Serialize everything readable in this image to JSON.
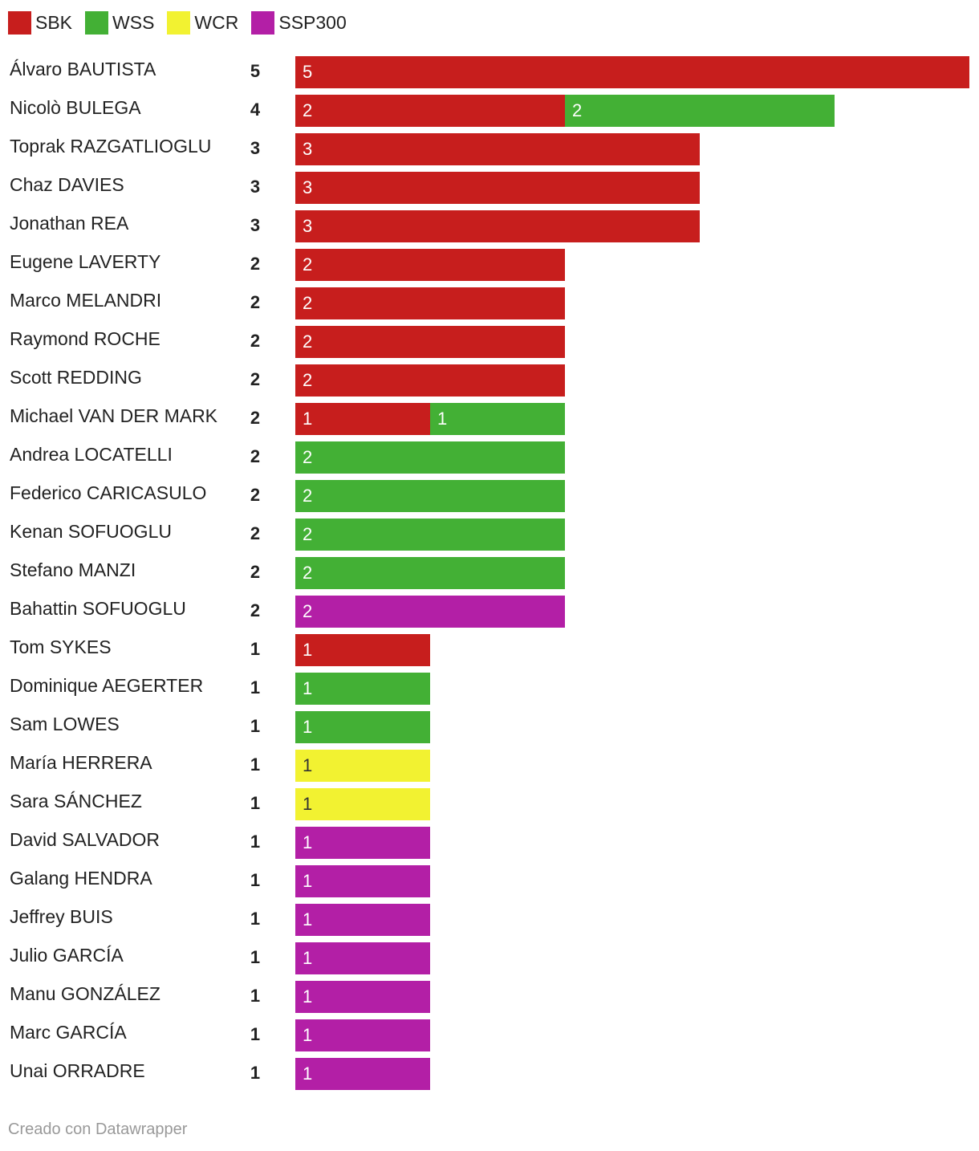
{
  "chart_data": {
    "type": "bar",
    "orientation": "horizontal",
    "stacked": true,
    "title": "",
    "xlabel": "",
    "ylabel": "",
    "xlim": [
      0,
      5
    ],
    "grid": false,
    "legend_placement": "top-left",
    "series": [
      {
        "name": "SBK",
        "color": "#c71e1d"
      },
      {
        "name": "WSS",
        "color": "#43b035"
      },
      {
        "name": "WCR",
        "color": "#f2f231"
      },
      {
        "name": "SSP300",
        "color": "#b31fa6"
      }
    ],
    "rows": [
      {
        "name": "Álvaro BAUTISTA",
        "total": "5",
        "values": [
          5,
          0,
          0,
          0
        ]
      },
      {
        "name": "Nicolò BULEGA",
        "total": "4",
        "values": [
          2,
          2,
          0,
          0
        ]
      },
      {
        "name": "Toprak RAZGATLIOGLU",
        "total": "3",
        "values": [
          3,
          0,
          0,
          0
        ]
      },
      {
        "name": "Chaz DAVIES",
        "total": "3",
        "values": [
          3,
          0,
          0,
          0
        ]
      },
      {
        "name": "Jonathan REA",
        "total": "3",
        "values": [
          3,
          0,
          0,
          0
        ]
      },
      {
        "name": "Eugene LAVERTY",
        "total": "2",
        "values": [
          2,
          0,
          0,
          0
        ]
      },
      {
        "name": "Marco MELANDRI",
        "total": "2",
        "values": [
          2,
          0,
          0,
          0
        ]
      },
      {
        "name": "Raymond ROCHE",
        "total": "2",
        "values": [
          2,
          0,
          0,
          0
        ]
      },
      {
        "name": "Scott REDDING",
        "total": "2",
        "values": [
          2,
          0,
          0,
          0
        ]
      },
      {
        "name": "Michael VAN DER MARK",
        "total": "2",
        "values": [
          1,
          1,
          0,
          0
        ]
      },
      {
        "name": "Andrea LOCATELLI",
        "total": "2",
        "values": [
          0,
          2,
          0,
          0
        ]
      },
      {
        "name": "Federico CARICASULO",
        "total": "2",
        "values": [
          0,
          2,
          0,
          0
        ]
      },
      {
        "name": "Kenan SOFUOGLU",
        "total": "2",
        "values": [
          0,
          2,
          0,
          0
        ]
      },
      {
        "name": "Stefano MANZI",
        "total": "2",
        "values": [
          0,
          2,
          0,
          0
        ]
      },
      {
        "name": "Bahattin SOFUOGLU",
        "total": "2",
        "values": [
          0,
          0,
          0,
          2
        ]
      },
      {
        "name": "Tom SYKES",
        "total": "1",
        "values": [
          1,
          0,
          0,
          0
        ]
      },
      {
        "name": "Dominique AEGERTER",
        "total": "1",
        "values": [
          0,
          1,
          0,
          0
        ]
      },
      {
        "name": "Sam LOWES",
        "total": "1",
        "values": [
          0,
          1,
          0,
          0
        ]
      },
      {
        "name": "María HERRERA",
        "total": "1",
        "values": [
          0,
          0,
          1,
          0
        ]
      },
      {
        "name": "Sara SÁNCHEZ",
        "total": "1",
        "values": [
          0,
          0,
          1,
          0
        ]
      },
      {
        "name": "David SALVADOR",
        "total": "1",
        "values": [
          0,
          0,
          0,
          1
        ]
      },
      {
        "name": "Galang HENDRA",
        "total": "1",
        "values": [
          0,
          0,
          0,
          1
        ]
      },
      {
        "name": "Jeffrey BUIS",
        "total": "1",
        "values": [
          0,
          0,
          0,
          1
        ]
      },
      {
        "name": "Julio GARCÍA",
        "total": "1",
        "values": [
          0,
          0,
          0,
          1
        ]
      },
      {
        "name": "Manu GONZÁLEZ",
        "total": "1",
        "values": [
          0,
          0,
          0,
          1
        ]
      },
      {
        "name": "Marc GARCÍA",
        "total": "1",
        "values": [
          0,
          0,
          0,
          1
        ]
      },
      {
        "name": "Unai ORRADRE",
        "total": "1",
        "values": [
          0,
          0,
          0,
          1
        ]
      }
    ]
  },
  "footer": {
    "credit": "Creado con Datawrapper"
  }
}
